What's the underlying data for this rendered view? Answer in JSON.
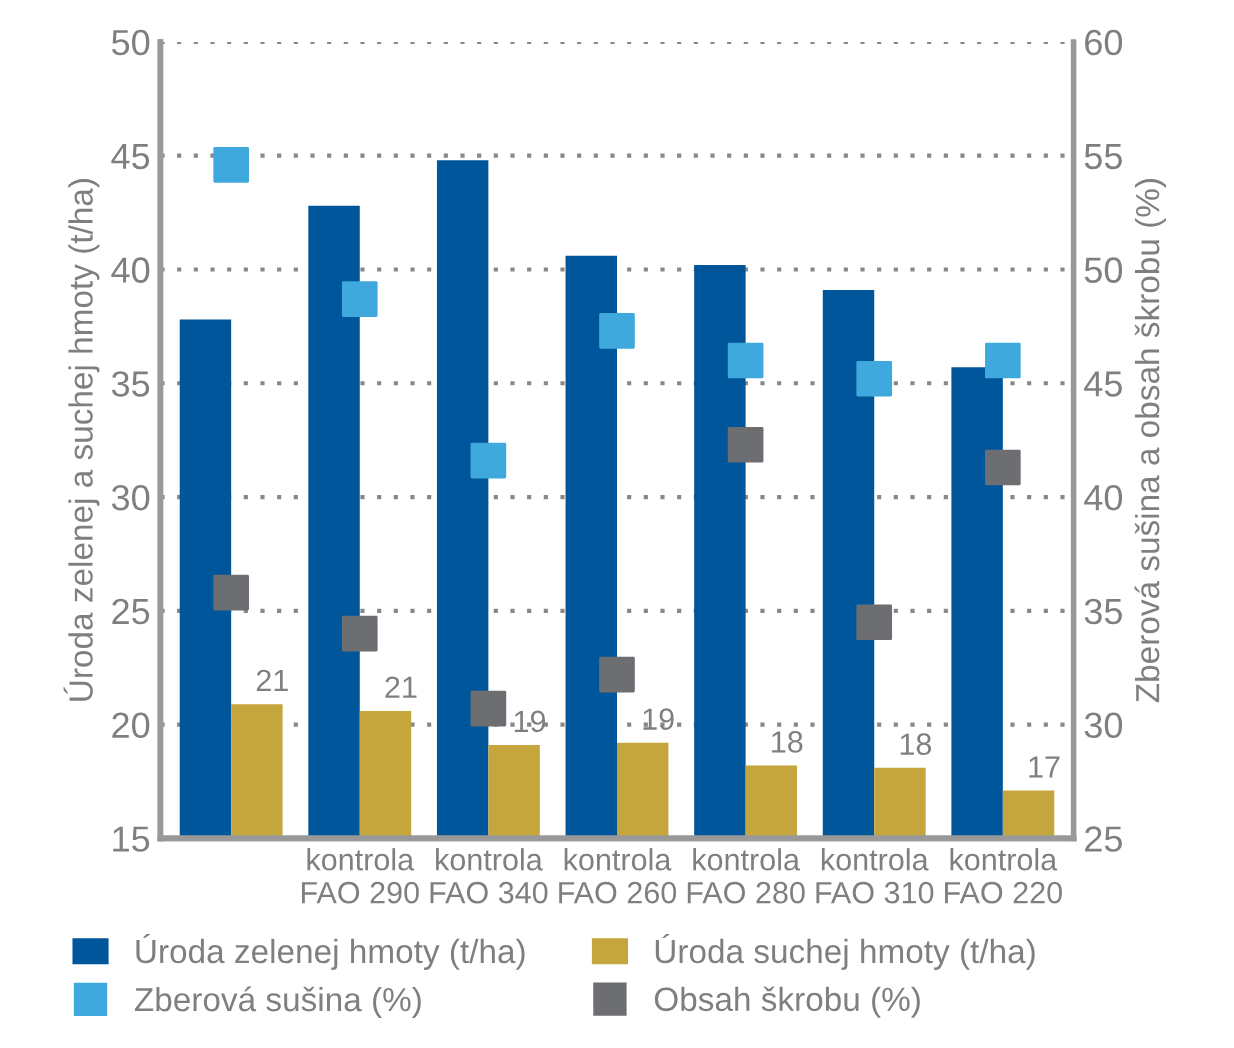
{
  "chart_data": {
    "type": "bar",
    "categories": [
      null,
      "kontrola\nFAO 290",
      "kontrola\nFAO 340",
      "kontrola\nFAO 260",
      "kontrola\nFAO 280",
      "kontrola\nFAO 310",
      "kontrola\nFAO 220"
    ],
    "ylabel": "Úroda zelenej a suchej hmoty (t/ha)",
    "y2label": "Zberová sušina a obsah škrobu (%)",
    "ylim": [
      15,
      50
    ],
    "yticks": [
      15,
      20,
      25,
      30,
      35,
      40,
      45,
      50
    ],
    "y2lim": [
      25,
      60
    ],
    "y2ticks": [
      25,
      30,
      35,
      40,
      45,
      50,
      55,
      60
    ],
    "grid": "y",
    "legend": "bottom",
    "marker": "square",
    "series": [
      {
        "name": "Úroda zelenej hmoty (t/ha)",
        "color": "#00569a",
        "values": [
          37.8,
          42.8,
          44.8,
          40.6,
          40.2,
          39.1,
          35.7
        ]
      },
      {
        "name": "Úroda suchej hmoty (t/ha)",
        "color": "#c5a63c",
        "values": [
          20.9,
          20.6,
          19.1,
          19.2,
          18.2,
          18.1,
          17.1
        ],
        "value_labels": [
          "21",
          "21",
          "19",
          "19",
          "18",
          "18",
          "17"
        ]
      },
      {
        "name": "Zberová sušina (%)",
        "type": "scatter",
        "axis": "y2",
        "color": "#3fa9de",
        "values": [
          54.6,
          48.7,
          41.6,
          47.3,
          46.0,
          45.2,
          46.0
        ]
      },
      {
        "name": "Obsah škrobu (%)",
        "type": "scatter",
        "axis": "y2",
        "color": "#6d6e71",
        "values": [
          35.8,
          34.0,
          30.7,
          32.2,
          42.3,
          34.5,
          41.3
        ]
      }
    ]
  }
}
